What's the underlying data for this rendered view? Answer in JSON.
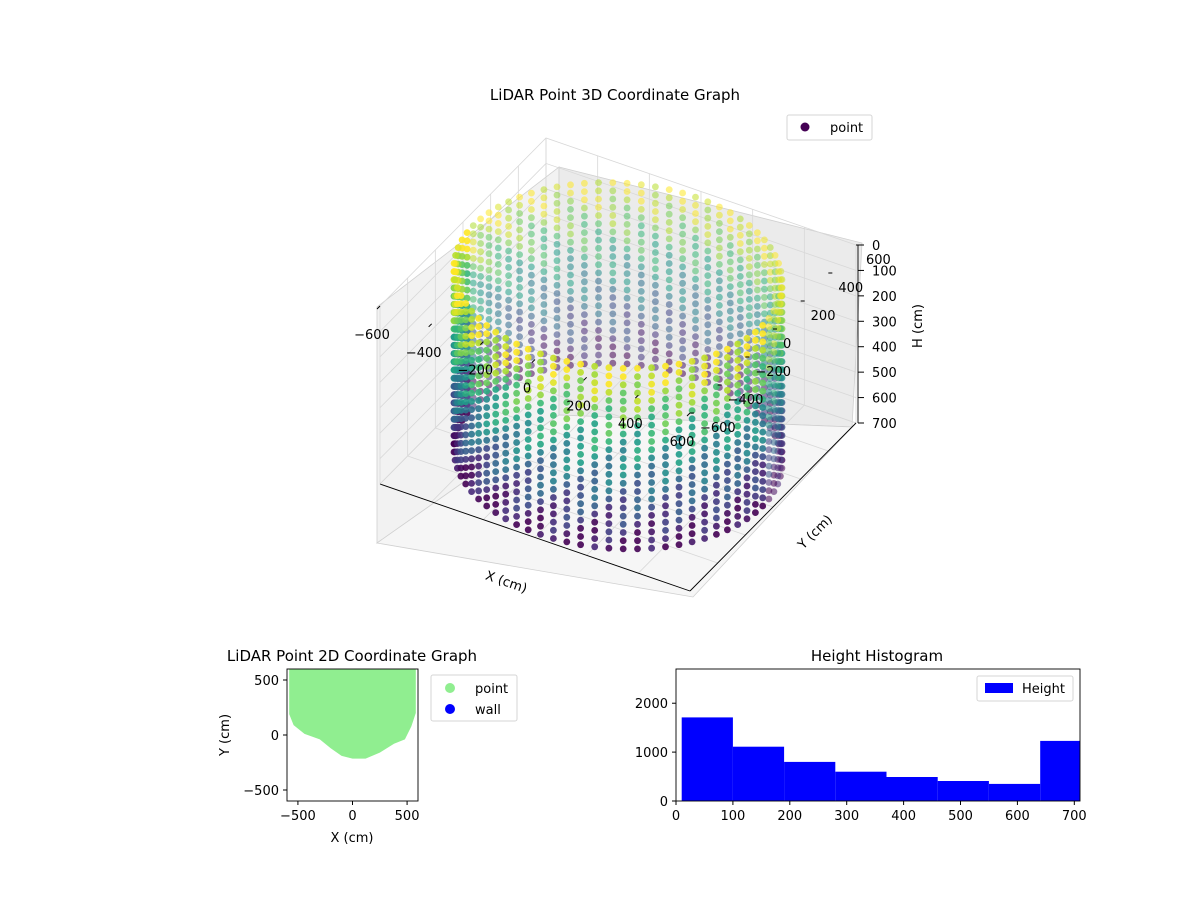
{
  "chart_data": [
    {
      "type": "scatter3d",
      "title": "LiDAR Point 3D Coordinate Graph",
      "xlabel": "X (cm)",
      "ylabel": "Y (cm)",
      "zlabel": "H (cm)",
      "xlim": [
        -600,
        600
      ],
      "ylim": [
        -600,
        600
      ],
      "zlim": [
        0,
        700
      ],
      "z_inverted": true,
      "x_ticks": [
        "−600",
        "−400",
        "−200",
        "0",
        "200",
        "400",
        "600"
      ],
      "y_ticks": [
        "−600",
        "−400",
        "−200",
        "0",
        "200",
        "400",
        "600"
      ],
      "z_ticks": [
        "0",
        "100",
        "200",
        "300",
        "400",
        "500",
        "600",
        "700"
      ],
      "legend": [
        "point"
      ],
      "legend_position": "top-right",
      "colormap": "viridis",
      "grid": true,
      "shape": "cylinder of points, radius approx. 560 cm, heights 0 to 710 cm"
    },
    {
      "type": "scatter",
      "title": "LiDAR Point 2D Coordinate Graph",
      "xlabel": "X (cm)",
      "ylabel": "Y (cm)",
      "xlim": [
        -600,
        600
      ],
      "ylim": [
        -600,
        600
      ],
      "x_ticks": [
        "−500",
        "0",
        "500"
      ],
      "y_ticks": [
        "500",
        "0",
        "−500"
      ],
      "legend": [
        "point",
        "wall"
      ],
      "legend_position": "outside-right",
      "series_colors": [
        "#90ee90",
        "#0000ff"
      ],
      "region_outline": [
        [
          -580,
          620
        ],
        [
          -580,
          190
        ],
        [
          -540,
          90
        ],
        [
          -440,
          10
        ],
        [
          -300,
          -40
        ],
        [
          -200,
          -120
        ],
        [
          -100,
          -190
        ],
        [
          0,
          -215
        ],
        [
          120,
          -215
        ],
        [
          250,
          -160
        ],
        [
          380,
          -80
        ],
        [
          480,
          -40
        ],
        [
          540,
          80
        ],
        [
          580,
          200
        ],
        [
          580,
          620
        ]
      ]
    },
    {
      "type": "bar",
      "title": "Height Histogram",
      "legend": [
        "Height"
      ],
      "legend_position": "top-right",
      "color": "#0000ff",
      "xlim": [
        0,
        710
      ],
      "ylim": [
        0,
        2700
      ],
      "x_ticks": [
        "0",
        "100",
        "200",
        "300",
        "400",
        "500",
        "600",
        "700"
      ],
      "y_ticks": [
        "0",
        "1000",
        "2000"
      ],
      "bins": [
        {
          "start": 10,
          "end": 100,
          "count": 1710
        },
        {
          "start": 100,
          "end": 190,
          "count": 1110
        },
        {
          "start": 190,
          "end": 280,
          "count": 800
        },
        {
          "start": 280,
          "end": 370,
          "count": 600
        },
        {
          "start": 370,
          "end": 460,
          "count": 490
        },
        {
          "start": 460,
          "end": 550,
          "count": 410
        },
        {
          "start": 550,
          "end": 640,
          "count": 350
        },
        {
          "start": 640,
          "end": 710,
          "count": 1230
        }
      ]
    }
  ]
}
